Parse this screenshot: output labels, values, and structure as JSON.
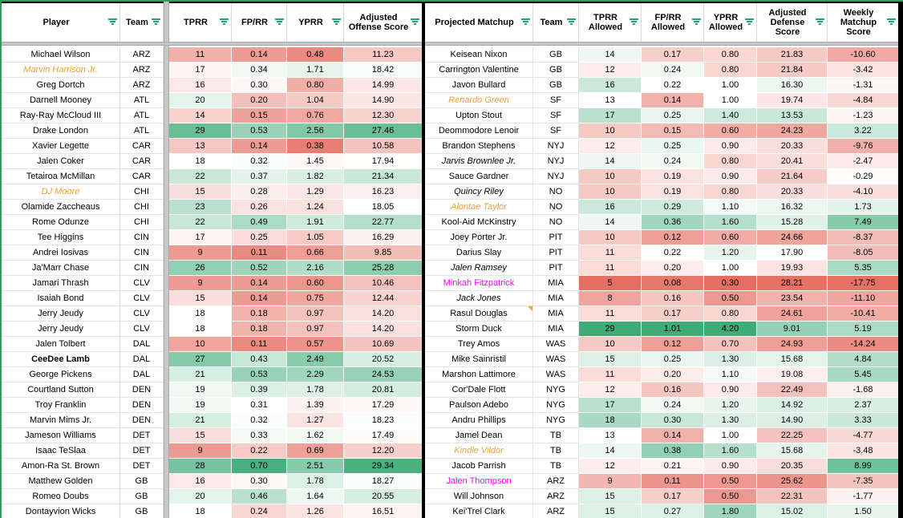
{
  "colors": {
    "gradient_red": "#E56E62",
    "gradient_green": "#3FAC78",
    "filter_icon_green": "#26A269",
    "range_border_green": "#2C9E5B",
    "pane_divider_gray": "#C7C7C7",
    "table_border_black": "#000000",
    "name_orange": "#F29D38",
    "name_magenta": "#FF00FF",
    "note_triangle_orange": "#F6A623"
  },
  "left_table": {
    "headers": [
      "Player",
      "Team",
      "TPRR",
      "FP/RR",
      "YPRR",
      "Adjusted Offense Score"
    ],
    "rows": [
      {
        "player": "Michael Wilson",
        "team": "ARZ",
        "tprr": "11",
        "fprr": "0.14",
        "yprr": "0.48",
        "score": "11.23",
        "style": "normal"
      },
      {
        "player": "Marvin Harrison Jr.",
        "team": "ARZ",
        "tprr": "17",
        "fprr": "0.34",
        "yprr": "1.71",
        "score": "18.42",
        "style": "orange-italic"
      },
      {
        "player": "Greg Dortch",
        "team": "ARZ",
        "tprr": "16",
        "fprr": "0.30",
        "yprr": "0.80",
        "score": "14.99",
        "style": "normal"
      },
      {
        "player": "Darnell Mooney",
        "team": "ATL",
        "tprr": "20",
        "fprr": "0.20",
        "yprr": "1.04",
        "score": "14.90",
        "style": "normal"
      },
      {
        "player": "Ray-Ray McCloud III",
        "team": "ATL",
        "tprr": "14",
        "fprr": "0.15",
        "yprr": "0.76",
        "score": "12.30",
        "style": "normal"
      },
      {
        "player": "Drake London",
        "team": "ATL",
        "tprr": "29",
        "fprr": "0.53",
        "yprr": "2.56",
        "score": "27.46",
        "style": "normal"
      },
      {
        "player": "Xavier Legette",
        "team": "CAR",
        "tprr": "13",
        "fprr": "0.14",
        "yprr": "0.38",
        "score": "10.58",
        "style": "normal"
      },
      {
        "player": "Jalen Coker",
        "team": "CAR",
        "tprr": "18",
        "fprr": "0.32",
        "yprr": "1.45",
        "score": "17.94",
        "style": "normal"
      },
      {
        "player": "Tetairoa McMillan",
        "team": "CAR",
        "tprr": "22",
        "fprr": "0.37",
        "yprr": "1.82",
        "score": "21.34",
        "style": "normal"
      },
      {
        "player": "DJ Moore",
        "team": "CHI",
        "tprr": "15",
        "fprr": "0.28",
        "yprr": "1.29",
        "score": "16.23",
        "style": "orange-italic"
      },
      {
        "player": "Olamide Zaccheaus",
        "team": "CHI",
        "tprr": "23",
        "fprr": "0.26",
        "yprr": "1.24",
        "score": "18.05",
        "style": "normal"
      },
      {
        "player": "Rome Odunze",
        "team": "CHI",
        "tprr": "22",
        "fprr": "0.49",
        "yprr": "1.91",
        "score": "22.77",
        "style": "normal"
      },
      {
        "player": "Tee Higgins",
        "team": "CIN",
        "tprr": "17",
        "fprr": "0.25",
        "yprr": "1.05",
        "score": "16.29",
        "style": "normal"
      },
      {
        "player": "Andrei Iosivas",
        "team": "CIN",
        "tprr": "9",
        "fprr": "0.11",
        "yprr": "0.66",
        "score": "9.85",
        "style": "normal"
      },
      {
        "player": "Ja'Marr Chase",
        "team": "CIN",
        "tprr": "26",
        "fprr": "0.52",
        "yprr": "2.16",
        "score": "25.28",
        "style": "normal"
      },
      {
        "player": "Jamari Thrash",
        "team": "CLV",
        "tprr": "9",
        "fprr": "0.14",
        "yprr": "0.60",
        "score": "10.46",
        "style": "normal"
      },
      {
        "player": "Isaiah Bond",
        "team": "CLV",
        "tprr": "15",
        "fprr": "0.14",
        "yprr": "0.75",
        "score": "12.44",
        "style": "normal"
      },
      {
        "player": "Jerry Jeudy",
        "team": "CLV",
        "tprr": "18",
        "fprr": "0.18",
        "yprr": "0.97",
        "score": "14.20",
        "style": "normal"
      },
      {
        "player": "Jerry Jeudy",
        "team": "CLV",
        "tprr": "18",
        "fprr": "0.18",
        "yprr": "0.97",
        "score": "14.20",
        "style": "normal"
      },
      {
        "player": "Jalen Tolbert",
        "team": "DAL",
        "tprr": "10",
        "fprr": "0.11",
        "yprr": "0.57",
        "score": "10.69",
        "style": "normal"
      },
      {
        "player": "CeeDee Lamb",
        "team": "DAL",
        "tprr": "27",
        "fprr": "0.43",
        "yprr": "2.49",
        "score": "20.52",
        "style": "bold"
      },
      {
        "player": "George Pickens",
        "team": "DAL",
        "tprr": "21",
        "fprr": "0.53",
        "yprr": "2.29",
        "score": "24.53",
        "style": "normal"
      },
      {
        "player": "Courtland Sutton",
        "team": "DEN",
        "tprr": "19",
        "fprr": "0.39",
        "yprr": "1.78",
        "score": "20.81",
        "style": "normal"
      },
      {
        "player": "Troy Franklin",
        "team": "DEN",
        "tprr": "19",
        "fprr": "0.31",
        "yprr": "1.39",
        "score": "17.29",
        "style": "normal"
      },
      {
        "player": "Marvin Mims Jr.",
        "team": "DEN",
        "tprr": "21",
        "fprr": "0.32",
        "yprr": "1.27",
        "score": "18.23",
        "style": "normal"
      },
      {
        "player": "Jameson Williams",
        "team": "DET",
        "tprr": "15",
        "fprr": "0.33",
        "yprr": "1.62",
        "score": "17.49",
        "style": "normal"
      },
      {
        "player": "Isaac TeSlaa",
        "team": "DET",
        "tprr": "9",
        "fprr": "0.22",
        "yprr": "0.69",
        "score": "12.20",
        "style": "normal"
      },
      {
        "player": "Amon-Ra St. Brown",
        "team": "DET",
        "tprr": "28",
        "fprr": "0.70",
        "yprr": "2.51",
        "score": "29.34",
        "style": "normal"
      },
      {
        "player": "Matthew Golden",
        "team": "GB",
        "tprr": "16",
        "fprr": "0.30",
        "yprr": "1.78",
        "score": "18.27",
        "style": "normal"
      },
      {
        "player": "Romeo Doubs",
        "team": "GB",
        "tprr": "20",
        "fprr": "0.46",
        "yprr": "1.64",
        "score": "20.55",
        "style": "normal"
      },
      {
        "player": "Dontayvion Wicks",
        "team": "GB",
        "tprr": "18",
        "fprr": "0.24",
        "yprr": "1.26",
        "score": "16.51",
        "style": "normal"
      }
    ]
  },
  "right_table": {
    "headers": [
      "Projected Matchup",
      "Team",
      "TPRR Allowed",
      "FP/RR Allowed",
      "YPRR Allowed",
      "Adjusted Defense Score",
      "Weekly Matchup Score"
    ],
    "rows": [
      {
        "matchup": "Keisean Nixon",
        "team": "GB",
        "tprr": "14",
        "fprr": "0.17",
        "yprr": "0.80",
        "defscore": "21.83",
        "wms": "-10.60",
        "style": "normal"
      },
      {
        "matchup": "Carrington Valentine",
        "team": "GB",
        "tprr": "12",
        "fprr": "0.24",
        "yprr": "0.80",
        "defscore": "21.84",
        "wms": "-3.42",
        "style": "normal"
      },
      {
        "matchup": "Javon Bullard",
        "team": "GB",
        "tprr": "16",
        "fprr": "0.22",
        "yprr": "1.00",
        "defscore": "16.30",
        "wms": "-1.31",
        "style": "normal"
      },
      {
        "matchup": "Renardo Green",
        "team": "SF",
        "tprr": "13",
        "fprr": "0.14",
        "yprr": "1.00",
        "defscore": "19.74",
        "wms": "-4.84",
        "style": "orange-italic"
      },
      {
        "matchup": "Upton Stout",
        "team": "SF",
        "tprr": "17",
        "fprr": "0.25",
        "yprr": "1.40",
        "defscore": "13.53",
        "wms": "-1.23",
        "style": "normal"
      },
      {
        "matchup": "Deommodore Lenoir",
        "team": "SF",
        "tprr": "10",
        "fprr": "0.15",
        "yprr": "0.60",
        "defscore": "24.23",
        "wms": "3.22",
        "style": "normal"
      },
      {
        "matchup": "Brandon Stephens",
        "team": "NYJ",
        "tprr": "12",
        "fprr": "0.25",
        "yprr": "0.90",
        "defscore": "20.33",
        "wms": "-9.76",
        "style": "normal"
      },
      {
        "matchup": "Jarvis Brownlee Jr.",
        "team": "NYJ",
        "tprr": "14",
        "fprr": "0.24",
        "yprr": "0.80",
        "defscore": "20.41",
        "wms": "-2.47",
        "style": "italic"
      },
      {
        "matchup": "Sauce Gardner",
        "team": "NYJ",
        "tprr": "10",
        "fprr": "0.19",
        "yprr": "0.90",
        "defscore": "21.64",
        "wms": "-0.29",
        "style": "normal"
      },
      {
        "matchup": "Quincy Riley",
        "team": "NO",
        "tprr": "10",
        "fprr": "0.19",
        "yprr": "0.80",
        "defscore": "20.33",
        "wms": "-4.10",
        "style": "italic"
      },
      {
        "matchup": "Alontae Taylor",
        "team": "NO",
        "tprr": "16",
        "fprr": "0.29",
        "yprr": "1.10",
        "defscore": "16.32",
        "wms": "1.73",
        "style": "orange-italic"
      },
      {
        "matchup": "Kool-Aid McKinstry",
        "team": "NO",
        "tprr": "14",
        "fprr": "0.36",
        "yprr": "1.60",
        "defscore": "15.28",
        "wms": "7.49",
        "style": "normal"
      },
      {
        "matchup": "Joey Porter Jr.",
        "team": "PIT",
        "tprr": "10",
        "fprr": "0.12",
        "yprr": "0.60",
        "defscore": "24.66",
        "wms": "-8.37",
        "style": "normal"
      },
      {
        "matchup": "Darius Slay",
        "team": "PIT",
        "tprr": "11",
        "fprr": "0.22",
        "yprr": "1.20",
        "defscore": "17.90",
        "wms": "-8.05",
        "style": "normal"
      },
      {
        "matchup": "Jalen Ramsey",
        "team": "PIT",
        "tprr": "11",
        "fprr": "0.20",
        "yprr": "1.00",
        "defscore": "19.93",
        "wms": "5.35",
        "style": "italic"
      },
      {
        "matchup": "Minkah Fitzpatrick",
        "team": "MIA",
        "tprr": "5",
        "fprr": "0.08",
        "yprr": "0.30",
        "defscore": "28.21",
        "wms": "-17.75",
        "style": "magenta"
      },
      {
        "matchup": "Jack Jones",
        "team": "MIA",
        "tprr": "8",
        "fprr": "0.16",
        "yprr": "0.50",
        "defscore": "23.54",
        "wms": "-11.10",
        "style": "italic"
      },
      {
        "matchup": "Rasul Douglas",
        "team": "MIA",
        "tprr": "11",
        "fprr": "0.17",
        "yprr": "0.80",
        "defscore": "24.61",
        "wms": "-10.41",
        "style": "normal",
        "note": true
      },
      {
        "matchup": "Storm Duck",
        "team": "MIA",
        "tprr": "29",
        "fprr": "1.01",
        "yprr": "4.20",
        "defscore": "9.01",
        "wms": "5.19",
        "style": "normal"
      },
      {
        "matchup": "Trey Amos",
        "team": "WAS",
        "tprr": "10",
        "fprr": "0.12",
        "yprr": "0.70",
        "defscore": "24.93",
        "wms": "-14.24",
        "style": "normal"
      },
      {
        "matchup": "Mike Sainristil",
        "team": "WAS",
        "tprr": "15",
        "fprr": "0.25",
        "yprr": "1.30",
        "defscore": "15.68",
        "wms": "4.84",
        "style": "normal"
      },
      {
        "matchup": "Marshon Lattimore",
        "team": "WAS",
        "tprr": "11",
        "fprr": "0.20",
        "yprr": "1.10",
        "defscore": "19.08",
        "wms": "5.45",
        "style": "normal"
      },
      {
        "matchup": "Cor'Dale Flott",
        "team": "NYG",
        "tprr": "12",
        "fprr": "0.16",
        "yprr": "0.90",
        "defscore": "22.49",
        "wms": "-1.68",
        "style": "normal"
      },
      {
        "matchup": "Paulson Adebo",
        "team": "NYG",
        "tprr": "17",
        "fprr": "0.24",
        "yprr": "1.20",
        "defscore": "14.92",
        "wms": "2.37",
        "style": "normal"
      },
      {
        "matchup": "Andru Phillips",
        "team": "NYG",
        "tprr": "18",
        "fprr": "0.30",
        "yprr": "1.30",
        "defscore": "14.90",
        "wms": "3.33",
        "style": "normal"
      },
      {
        "matchup": "Jamel Dean",
        "team": "TB",
        "tprr": "13",
        "fprr": "0.14",
        "yprr": "1.00",
        "defscore": "22.25",
        "wms": "-4.77",
        "style": "normal"
      },
      {
        "matchup": "Kindle Vildor",
        "team": "TB",
        "tprr": "14",
        "fprr": "0.38",
        "yprr": "1.60",
        "defscore": "15.68",
        "wms": "-3.48",
        "style": "orange-italic"
      },
      {
        "matchup": "Jacob Parrish",
        "team": "TB",
        "tprr": "12",
        "fprr": "0.21",
        "yprr": "0.90",
        "defscore": "20.35",
        "wms": "8.99",
        "style": "normal"
      },
      {
        "matchup": "Jalen Thompson",
        "team": "ARZ",
        "tprr": "9",
        "fprr": "0.11",
        "yprr": "0.50",
        "defscore": "25.62",
        "wms": "-7.35",
        "style": "magenta"
      },
      {
        "matchup": "Will Johnson",
        "team": "ARZ",
        "tprr": "15",
        "fprr": "0.17",
        "yprr": "0.50",
        "defscore": "22.31",
        "wms": "-1.77",
        "style": "normal"
      },
      {
        "matchup": "Kei'Trel Clark",
        "team": "ARZ",
        "tprr": "15",
        "fprr": "0.27",
        "yprr": "1.80",
        "defscore": "15.02",
        "wms": "1.50",
        "style": "normal"
      }
    ]
  }
}
